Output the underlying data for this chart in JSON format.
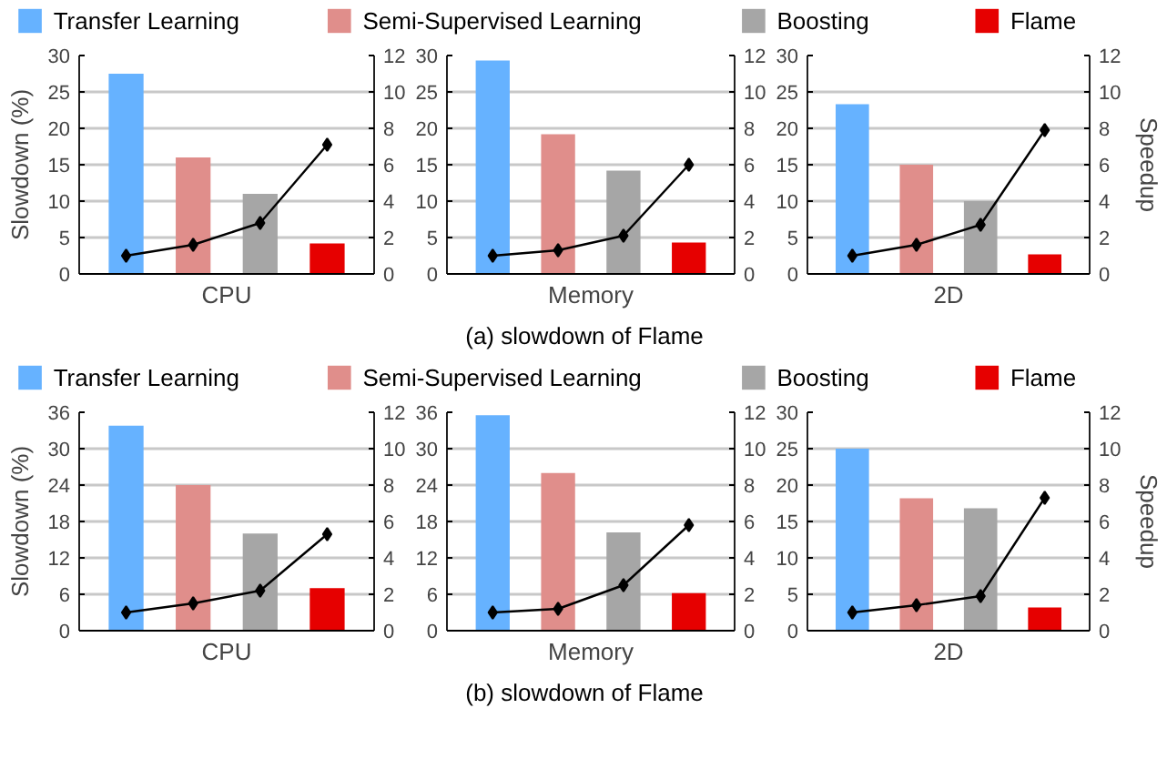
{
  "chart_data": [
    {
      "type": "bar",
      "xlabel": "CPU",
      "ylabel": "Slowdown (%)",
      "categories": [
        null,
        null,
        null,
        null
      ],
      "legend": "top",
      "grid": "y",
      "marker": "diamond",
      "ylim": [
        0,
        30
      ],
      "yticks": [
        0,
        5,
        10,
        15,
        20,
        25,
        30
      ],
      "y2lim": [
        0,
        12
      ],
      "y2ticks": [
        0,
        2,
        4,
        6,
        8,
        10,
        12
      ],
      "series": [
        {
          "name": "Transfer Learning",
          "color": "#66b2ff",
          "values": [
            27.5,
            null,
            null,
            null
          ]
        },
        {
          "name": "Semi-Supervised Learning",
          "color": "#e08e8b",
          "values": [
            null,
            16,
            null,
            null
          ]
        },
        {
          "name": "Boosting",
          "color": "#a6a6a6",
          "values": [
            null,
            null,
            11,
            null
          ]
        },
        {
          "name": "Flame",
          "color": "#e60000",
          "values": [
            null,
            null,
            null,
            4.2
          ]
        },
        {
          "type": "line",
          "axis": "y2",
          "color": "#000000",
          "values": [
            1,
            1.6,
            2.8,
            7.1
          ]
        }
      ]
    },
    {
      "type": "bar",
      "xlabel": "Memory",
      "categories": [
        null,
        null,
        null,
        null
      ],
      "grid": "y",
      "marker": "diamond",
      "ylim": [
        0,
        30
      ],
      "yticks": [
        0,
        5,
        10,
        15,
        20,
        25,
        30
      ],
      "y2lim": [
        0,
        12
      ],
      "y2ticks": [
        0,
        2,
        4,
        6,
        8,
        10,
        12
      ],
      "annotations": [
        "(a) slowdown of Flame"
      ],
      "series": [
        {
          "color": "#66b2ff",
          "values": [
            29.3,
            null,
            null,
            null
          ]
        },
        {
          "color": "#e08e8b",
          "values": [
            null,
            19.2,
            null,
            null
          ]
        },
        {
          "color": "#a6a6a6",
          "values": [
            null,
            null,
            14.2,
            null
          ]
        },
        {
          "color": "#e60000",
          "values": [
            null,
            null,
            null,
            4.3
          ]
        },
        {
          "type": "line",
          "axis": "y2",
          "color": "#000000",
          "values": [
            1,
            1.3,
            2.1,
            6.0
          ]
        }
      ]
    },
    {
      "type": "bar",
      "xlabel": "2D",
      "y2label": "Speedup",
      "categories": [
        null,
        null,
        null,
        null
      ],
      "grid": "y",
      "marker": "diamond",
      "ylim": [
        0,
        30
      ],
      "yticks": [
        0,
        5,
        10,
        15,
        20,
        25,
        30
      ],
      "y2lim": [
        0,
        12
      ],
      "y2ticks": [
        0,
        2,
        4,
        6,
        8,
        10,
        12
      ],
      "series": [
        {
          "color": "#66b2ff",
          "values": [
            23.3,
            null,
            null,
            null
          ]
        },
        {
          "color": "#e08e8b",
          "values": [
            null,
            15,
            null,
            null
          ]
        },
        {
          "color": "#a6a6a6",
          "values": [
            null,
            null,
            10,
            null
          ]
        },
        {
          "color": "#e60000",
          "values": [
            null,
            null,
            null,
            2.7
          ]
        },
        {
          "type": "line",
          "axis": "y2",
          "color": "#000000",
          "values": [
            1,
            1.6,
            2.7,
            7.9
          ]
        }
      ]
    },
    {
      "type": "bar",
      "xlabel": "CPU",
      "ylabel": "Slowdown (%)",
      "categories": [
        null,
        null,
        null,
        null
      ],
      "legend": "top",
      "grid": "y",
      "marker": "diamond",
      "ylim": [
        0,
        36
      ],
      "yticks": [
        0,
        6,
        12,
        18,
        24,
        30,
        36
      ],
      "y2lim": [
        0,
        12
      ],
      "y2ticks": [
        0,
        2,
        4,
        6,
        8,
        10,
        12
      ],
      "series": [
        {
          "name": "Transfer Learning",
          "color": "#66b2ff",
          "values": [
            33.8,
            null,
            null,
            null
          ]
        },
        {
          "name": "Semi-Supervised Learning",
          "color": "#e08e8b",
          "values": [
            null,
            24,
            null,
            null
          ]
        },
        {
          "name": "Boosting",
          "color": "#a6a6a6",
          "values": [
            null,
            null,
            16,
            null
          ]
        },
        {
          "name": "Flame",
          "color": "#e60000",
          "values": [
            null,
            null,
            null,
            7
          ]
        },
        {
          "type": "line",
          "axis": "y2",
          "color": "#000000",
          "values": [
            1,
            1.5,
            2.2,
            5.3
          ]
        }
      ]
    },
    {
      "type": "bar",
      "xlabel": "Memory",
      "categories": [
        null,
        null,
        null,
        null
      ],
      "grid": "y",
      "marker": "diamond",
      "ylim": [
        0,
        36
      ],
      "yticks": [
        0,
        6,
        12,
        18,
        24,
        30,
        36
      ],
      "y2lim": [
        0,
        12
      ],
      "y2ticks": [
        0,
        2,
        4,
        6,
        8,
        10,
        12
      ],
      "annotations": [
        "(b) slowdown of Flame"
      ],
      "series": [
        {
          "color": "#66b2ff",
          "values": [
            35.5,
            null,
            null,
            null
          ]
        },
        {
          "color": "#e08e8b",
          "values": [
            null,
            26,
            null,
            null
          ]
        },
        {
          "color": "#a6a6a6",
          "values": [
            null,
            null,
            16.2,
            null
          ]
        },
        {
          "color": "#e60000",
          "values": [
            null,
            null,
            null,
            6.2
          ]
        },
        {
          "type": "line",
          "axis": "y2",
          "color": "#000000",
          "values": [
            1,
            1.2,
            2.5,
            5.8
          ]
        }
      ]
    },
    {
      "type": "bar",
      "xlabel": "2D",
      "y2label": "Speedup",
      "categories": [
        null,
        null,
        null,
        null
      ],
      "grid": "y",
      "marker": "diamond",
      "ylim": [
        0,
        30
      ],
      "yticks": [
        0,
        5,
        10,
        15,
        20,
        25,
        30
      ],
      "y2lim": [
        0,
        12
      ],
      "y2ticks": [
        0,
        2,
        4,
        6,
        8,
        10,
        12
      ],
      "series": [
        {
          "color": "#66b2ff",
          "values": [
            25,
            null,
            null,
            null
          ]
        },
        {
          "color": "#e08e8b",
          "values": [
            null,
            18.2,
            null,
            null
          ]
        },
        {
          "color": "#a6a6a6",
          "values": [
            null,
            null,
            16.8,
            null
          ]
        },
        {
          "color": "#e60000",
          "values": [
            null,
            null,
            null,
            3.2
          ]
        },
        {
          "type": "line",
          "axis": "y2",
          "color": "#000000",
          "values": [
            1,
            1.4,
            1.9,
            7.3
          ]
        }
      ]
    }
  ]
}
